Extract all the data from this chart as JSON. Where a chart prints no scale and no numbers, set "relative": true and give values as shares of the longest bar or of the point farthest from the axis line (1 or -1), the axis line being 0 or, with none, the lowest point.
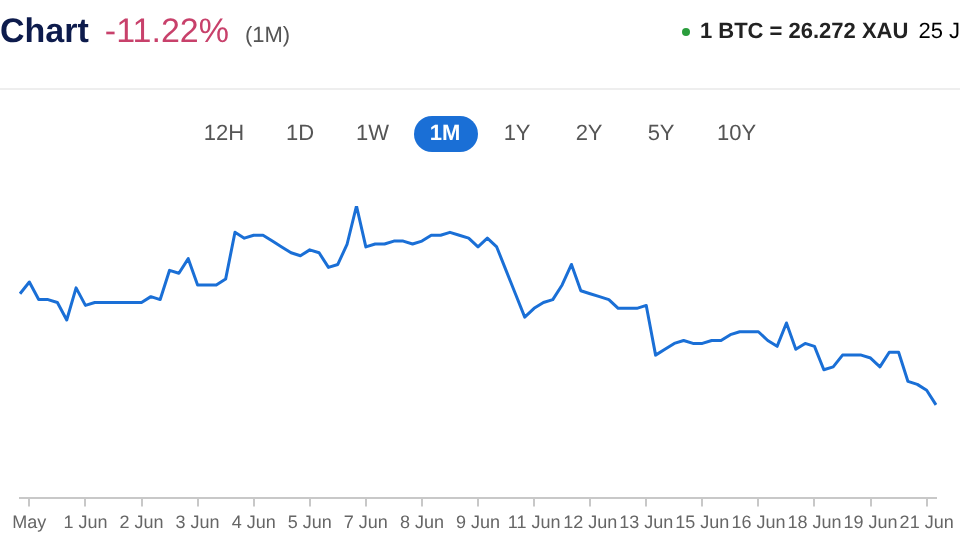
{
  "chart_data": {
    "type": "line",
    "title": "Chart",
    "subtitle": "-11.22%",
    "relative": true,
    "grid": false,
    "legend": false,
    "marker": "none",
    "tick_labels": "x",
    "annotations": [
      "(1M)",
      "1 BTC = 26.272 XAU",
      "25 J",
      "12H",
      "1D",
      "1W",
      "1M",
      "1Y",
      "2Y",
      "5Y",
      "10Y"
    ],
    "categories": [
      null,
      "May",
      null,
      null,
      null,
      null,
      null,
      "1 Jun",
      null,
      null,
      null,
      null,
      null,
      "2 Jun",
      null,
      null,
      null,
      null,
      null,
      "3 Jun",
      null,
      null,
      null,
      null,
      null,
      "4 Jun",
      null,
      null,
      null,
      null,
      null,
      "5 Jun",
      null,
      null,
      null,
      null,
      null,
      "7 Jun",
      null,
      null,
      null,
      null,
      null,
      "8 Jun",
      null,
      null,
      null,
      null,
      null,
      "9 Jun",
      null,
      null,
      null,
      null,
      null,
      "11 Jun",
      null,
      null,
      null,
      null,
      null,
      "12 Jun",
      null,
      null,
      null,
      null,
      null,
      "13 Jun",
      null,
      null,
      null,
      null,
      null,
      "15 Jun",
      null,
      null,
      null,
      null,
      null,
      "16 Jun",
      null,
      null,
      null,
      null,
      null,
      "18 Jun",
      null,
      null,
      null,
      null,
      null,
      "19 Jun",
      null,
      null,
      null,
      null,
      null,
      "21 Jun",
      null
    ],
    "series": [
      {
        "color": "#1a6fd6",
        "values": [
          0.7,
          0.74,
          0.68,
          0.68,
          0.67,
          0.61,
          0.72,
          0.66,
          0.67,
          0.67,
          0.67,
          0.67,
          0.67,
          0.67,
          0.69,
          0.68,
          0.78,
          0.77,
          0.82,
          0.73,
          0.73,
          0.73,
          0.75,
          0.91,
          0.89,
          0.9,
          0.9,
          0.88,
          0.86,
          0.84,
          0.83,
          0.85,
          0.84,
          0.79,
          0.8,
          0.87,
          1,
          0.86,
          0.87,
          0.87,
          0.88,
          0.88,
          0.87,
          0.88,
          0.9,
          0.9,
          0.91,
          0.9,
          0.89,
          0.86,
          0.89,
          0.86,
          0.78,
          0.7,
          0.62,
          0.65,
          0.67,
          0.68,
          0.73,
          0.8,
          0.71,
          0.7,
          0.69,
          0.68,
          0.65,
          0.65,
          0.65,
          0.66,
          0.49,
          0.51,
          0.53,
          0.54,
          0.53,
          0.53,
          0.54,
          0.54,
          0.56,
          0.57,
          0.57,
          0.57,
          0.54,
          0.52,
          0.6,
          0.51,
          0.53,
          0.52,
          0.44,
          0.45,
          0.49,
          0.49,
          0.49,
          0.48,
          0.45,
          0.5,
          0.5,
          0.4,
          0.39,
          0.37,
          0.32
        ]
      }
    ]
  }
}
